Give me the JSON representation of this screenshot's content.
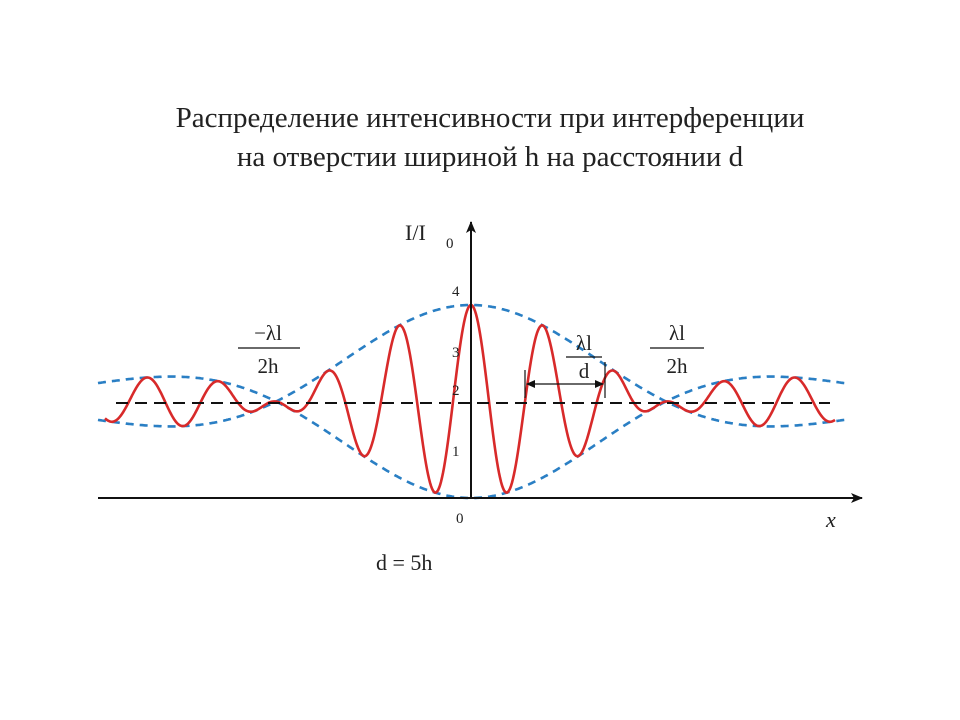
{
  "title": [
    "Распределение интенсивности при интерференции",
    "на отверстии шириной h на расстоянии d"
  ],
  "y_axis": {
    "label": "I/I",
    "subscript": "0"
  },
  "x_axis": {
    "label": "x",
    "origin": "0"
  },
  "ticks": [
    "1",
    "2",
    "3",
    "4"
  ],
  "annotations": [
    {
      "numerator": "−λl",
      "denominator": "2h"
    },
    {
      "numerator": "λl",
      "denominator": "d"
    },
    {
      "numerator": "λl",
      "denominator": "2h"
    }
  ],
  "caption": "d = 5h"
}
